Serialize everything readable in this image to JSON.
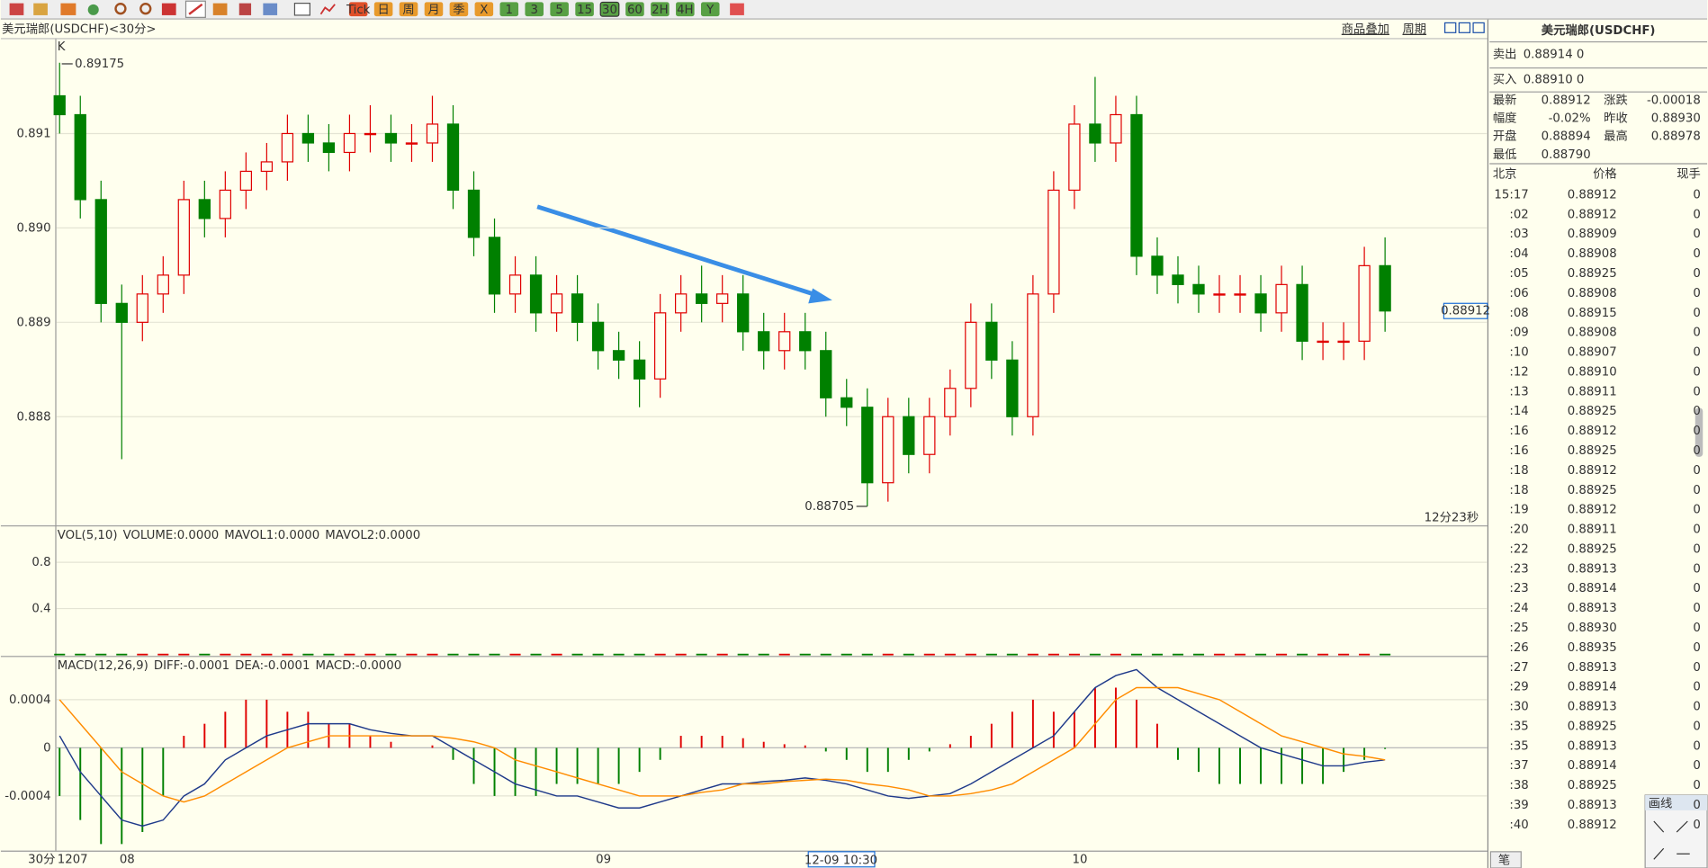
{
  "toolbar": [
    "Tick",
    "日",
    "周",
    "月",
    "季",
    "X",
    "1",
    "3",
    "5",
    "15",
    "30",
    "60",
    "2H",
    "4H",
    "Y"
  ],
  "header": {
    "symbol": "美元瑞郎(USDCHF)<30分>",
    "overlay": "商品叠加",
    "period": "周期"
  },
  "chart_data": [
    {
      "type": "candlestick",
      "label": "K",
      "cursor_label": "12-09 10:30",
      "period": "30分",
      "countdown": "12分23秒",
      "categories": [
        "1207",
        null,
        null,
        "08",
        null,
        null,
        null,
        null,
        null,
        null,
        null,
        null,
        null,
        null,
        null,
        null,
        null,
        null,
        null,
        null,
        null,
        null,
        null,
        null,
        null,
        null,
        "09",
        null,
        null,
        null,
        null,
        null,
        null,
        null,
        null,
        null,
        null,
        null,
        null,
        null,
        null,
        null,
        null,
        null,
        null,
        null,
        null,
        null,
        null,
        "10",
        null,
        null,
        null,
        null,
        null,
        null,
        null,
        null,
        null,
        null,
        null,
        null,
        null,
        null,
        null
      ],
      "open": [
        0.8914,
        0.8912,
        0.8903,
        0.8892,
        0.889,
        0.8893,
        0.8895,
        0.8903,
        0.8901,
        0.8904,
        0.8906,
        0.8907,
        0.891,
        0.8909,
        0.8908,
        0.891,
        0.891,
        0.8909,
        0.8909,
        0.8911,
        0.8904,
        0.8899,
        0.8893,
        0.8895,
        0.8891,
        0.8893,
        0.889,
        0.8887,
        0.8886,
        0.8884,
        0.8891,
        0.8893,
        0.8892,
        0.8893,
        0.8889,
        0.8887,
        0.8889,
        0.8887,
        0.8882,
        0.8881,
        0.8873,
        0.888,
        0.8876,
        0.888,
        0.8883,
        0.889,
        0.8886,
        0.888,
        0.8893,
        0.8904,
        0.8911,
        0.8909,
        0.8912,
        0.8897,
        0.8895,
        0.8894,
        0.8893,
        0.8893,
        0.8893,
        0.8891,
        0.8894,
        0.8888,
        0.8888,
        0.8888,
        0.8896
      ],
      "high": [
        0.89175,
        0.8914,
        0.8905,
        0.8894,
        0.8895,
        0.8897,
        0.8905,
        0.8905,
        0.8906,
        0.8908,
        0.8909,
        0.8912,
        0.8912,
        0.8911,
        0.8912,
        0.8913,
        0.8912,
        0.8911,
        0.8914,
        0.8913,
        0.8906,
        0.8901,
        0.8897,
        0.8897,
        0.8895,
        0.8895,
        0.8892,
        0.8889,
        0.8888,
        0.8893,
        0.8895,
        0.8896,
        0.8895,
        0.8895,
        0.8891,
        0.8891,
        0.8891,
        0.8889,
        0.8884,
        0.8883,
        0.8882,
        0.8882,
        0.8882,
        0.8885,
        0.8892,
        0.8892,
        0.8888,
        0.8895,
        0.8906,
        0.8913,
        0.8916,
        0.8914,
        0.8914,
        0.8899,
        0.8897,
        0.8896,
        0.8895,
        0.8895,
        0.8895,
        0.8896,
        0.8896,
        0.889,
        0.889,
        0.8898,
        0.8899
      ],
      "low": [
        0.891,
        0.8901,
        0.889,
        0.88755,
        0.8888,
        0.8891,
        0.8893,
        0.8899,
        0.8899,
        0.8902,
        0.8904,
        0.8905,
        0.8907,
        0.8906,
        0.8906,
        0.8908,
        0.8907,
        0.8907,
        0.8907,
        0.8902,
        0.8897,
        0.8891,
        0.8891,
        0.8889,
        0.8889,
        0.8888,
        0.8885,
        0.8884,
        0.8881,
        0.8882,
        0.8889,
        0.889,
        0.889,
        0.8887,
        0.8885,
        0.8885,
        0.8885,
        0.888,
        0.8879,
        0.88705,
        0.8871,
        0.8874,
        0.8874,
        0.8878,
        0.8881,
        0.8884,
        0.8878,
        0.8878,
        0.8891,
        0.8902,
        0.8907,
        0.8907,
        0.8895,
        0.8893,
        0.8892,
        0.8891,
        0.8891,
        0.8891,
        0.8889,
        0.8889,
        0.8886,
        0.8886,
        0.8886,
        0.8886,
        0.8889
      ],
      "close": [
        0.8912,
        0.8903,
        0.8892,
        0.889,
        0.8893,
        0.8895,
        0.8903,
        0.8901,
        0.8904,
        0.8906,
        0.8907,
        0.891,
        0.8909,
        0.8908,
        0.891,
        0.891,
        0.8909,
        0.8909,
        0.8911,
        0.8904,
        0.8899,
        0.8893,
        0.8895,
        0.8891,
        0.8893,
        0.889,
        0.8887,
        0.8886,
        0.8884,
        0.8891,
        0.8893,
        0.8892,
        0.8893,
        0.8889,
        0.8887,
        0.8889,
        0.8887,
        0.8882,
        0.8881,
        0.8873,
        0.888,
        0.8876,
        0.888,
        0.8883,
        0.889,
        0.8886,
        0.888,
        0.8893,
        0.8904,
        0.8911,
        0.8909,
        0.8912,
        0.8897,
        0.8895,
        0.8894,
        0.8893,
        0.8893,
        0.8893,
        0.8891,
        0.8894,
        0.8888,
        0.8888,
        0.8888,
        0.8896,
        0.88912
      ],
      "up_color": "#e00000",
      "down_color": "#008000",
      "ylim": [
        0.88686,
        0.892
      ],
      "yticks": [
        0.888,
        0.889,
        {
          "value": 0.89,
          "label": "0.890"
        },
        0.891
      ],
      "grid": true
    },
    {
      "type": "volume",
      "title": "VOL(5,10)",
      "legend": [
        {
          "text": "VOLUME:0.0000",
          "color": "#555555"
        },
        {
          "text": "MAVOL1:0.0000",
          "color": "#000080"
        },
        {
          "text": "MAVOL2:0.0000",
          "color": "#ff8000"
        }
      ],
      "values": [
        0,
        0,
        0,
        0,
        0,
        0,
        0,
        0,
        0,
        0,
        0,
        0,
        0,
        0,
        0,
        0,
        0,
        0,
        0,
        0,
        0,
        0,
        0,
        0,
        0,
        0,
        0,
        0,
        0,
        0,
        0,
        0,
        0,
        0,
        0,
        0,
        0,
        0,
        0,
        0,
        0,
        0,
        0,
        0,
        0,
        0,
        0,
        0,
        0,
        0,
        0,
        0,
        0,
        0,
        0,
        0,
        0,
        0,
        0,
        0,
        0,
        0,
        0,
        0,
        0
      ],
      "ylim": [
        0,
        1.11
      ],
      "yticks": [
        0.4,
        0.8
      ],
      "grid": true
    },
    {
      "type": "macd",
      "title": "MACD(12,26,9)",
      "series": [
        {
          "name": "DIFF:-0.0001",
          "color": "#1f3a8a",
          "values": [
            0.0001,
            -0.0002,
            -0.0004,
            -0.0006,
            -0.00065,
            -0.0006,
            -0.0004,
            -0.0003,
            -0.0001,
            0,
            0.0001,
            0.00015,
            0.0002,
            0.0002,
            0.0002,
            0.00015,
            0.00012,
            0.0001,
            0.0001,
            0,
            -0.0001,
            -0.0002,
            -0.0003,
            -0.00035,
            -0.0004,
            -0.0004,
            -0.00045,
            -0.0005,
            -0.0005,
            -0.00045,
            -0.0004,
            -0.00035,
            -0.0003,
            -0.0003,
            -0.00028,
            -0.00027,
            -0.00025,
            -0.00027,
            -0.0003,
            -0.00035,
            -0.0004,
            -0.00042,
            -0.0004,
            -0.00038,
            -0.0003,
            -0.0002,
            -0.0001,
            0,
            0.0001,
            0.0003,
            0.0005,
            0.0006,
            0.00065,
            0.0005,
            0.0004,
            0.0003,
            0.0002,
            0.0001,
            0,
            -5e-05,
            -0.0001,
            -0.00015,
            -0.00015,
            -0.00012,
            -0.0001
          ]
        },
        {
          "name": "DEA:-0.0001",
          "color": "#ff8c00",
          "values": [
            0.0004,
            0.0002,
            0,
            -0.0002,
            -0.0003,
            -0.0004,
            -0.00045,
            -0.0004,
            -0.0003,
            -0.0002,
            -0.0001,
            0,
            5e-05,
            0.0001,
            0.0001,
            0.0001,
            0.0001,
            0.0001,
            0.0001,
            8e-05,
            5e-05,
            0,
            -0.0001,
            -0.00015,
            -0.0002,
            -0.00025,
            -0.0003,
            -0.00035,
            -0.0004,
            -0.0004,
            -0.0004,
            -0.00037,
            -0.00035,
            -0.0003,
            -0.0003,
            -0.00028,
            -0.00027,
            -0.00026,
            -0.00027,
            -0.0003,
            -0.00032,
            -0.00035,
            -0.0004,
            -0.0004,
            -0.00038,
            -0.00035,
            -0.0003,
            -0.0002,
            -0.0001,
            0,
            0.0002,
            0.0004,
            0.0005,
            0.0005,
            0.0005,
            0.00045,
            0.0004,
            0.0003,
            0.0002,
            0.0001,
            5e-05,
            0,
            -5e-05,
            -7e-05,
            -0.0001
          ]
        }
      ],
      "histogram": {
        "name": "MACD:-0.0000",
        "up_color": "#e00000",
        "down_color": "#008000",
        "values": [
          -0.0004,
          -0.0006,
          -0.0008,
          -0.0008,
          -0.0007,
          -0.0004,
          0.0001,
          0.0002,
          0.0003,
          0.0004,
          0.0004,
          0.0003,
          0.0003,
          0.0002,
          0.0002,
          0.0001,
          5e-05,
          0,
          2e-05,
          -0.0001,
          -0.0003,
          -0.0004,
          -0.0004,
          -0.0004,
          -0.0003,
          -0.0003,
          -0.0003,
          -0.0003,
          -0.0002,
          -0.0001,
          0.0001,
          0.0001,
          0.0001,
          8e-05,
          5e-05,
          3e-05,
          2e-05,
          -3e-05,
          -0.0001,
          -0.0002,
          -0.0002,
          -0.0001,
          -3e-05,
          3e-05,
          0.0001,
          0.0002,
          0.0003,
          0.0004,
          0.0003,
          0.0003,
          0.0005,
          0.0005,
          0.0004,
          0.0002,
          -0.0001,
          -0.0002,
          -0.0003,
          -0.0003,
          -0.0003,
          -0.0003,
          -0.0003,
          -0.0003,
          -0.0002,
          -0.0001,
          -1e-05
        ]
      },
      "ylim": [
        -0.000845,
        0.000755
      ],
      "yticks": [
        0.0004,
        0,
        -0.0004
      ],
      "grid": true
    }
  ],
  "quote": {
    "title": "美元瑞郎(USDCHF)",
    "sell_label": "卖出",
    "sell": "0.88914 0",
    "buy_label": "买入",
    "buy": "0.88910 0",
    "stats": [
      [
        "最新",
        "0.88912",
        "涨跌",
        "-0.00018"
      ],
      [
        "幅度",
        "-0.02%",
        "昨收",
        "0.88930"
      ],
      [
        "开盘",
        "0.88894",
        "最高",
        "0.88978"
      ],
      [
        "最低",
        "0.88790"
      ]
    ],
    "ticks_header": [
      "北京",
      "价格",
      "现手"
    ],
    "ticks": [
      [
        "15:17",
        "0.88912",
        "0"
      ],
      [
        ":02",
        "0.88912",
        "0"
      ],
      [
        ":03",
        "0.88909",
        "0"
      ],
      [
        ":04",
        "0.88908",
        "0"
      ],
      [
        ":05",
        "0.88925",
        "0"
      ],
      [
        ":06",
        "0.88908",
        "0"
      ],
      [
        ":08",
        "0.88915",
        "0"
      ],
      [
        ":09",
        "0.88908",
        "0"
      ],
      [
        ":10",
        "0.88907",
        "0"
      ],
      [
        ":12",
        "0.88910",
        "0"
      ],
      [
        ":13",
        "0.88911",
        "0"
      ],
      [
        ":14",
        "0.88925",
        "0"
      ],
      [
        ":16",
        "0.88912",
        "0"
      ],
      [
        ":16",
        "0.88925",
        "0"
      ],
      [
        ":18",
        "0.88912",
        "0"
      ],
      [
        ":18",
        "0.88925",
        "0"
      ],
      [
        ":19",
        "0.88912",
        "0"
      ],
      [
        ":20",
        "0.88911",
        "0"
      ],
      [
        ":22",
        "0.88925",
        "0"
      ],
      [
        ":23",
        "0.88913",
        "0"
      ],
      [
        ":23",
        "0.88914",
        "0"
      ],
      [
        ":24",
        "0.88913",
        "0"
      ],
      [
        ":25",
        "0.88930",
        "0"
      ],
      [
        ":26",
        "0.88935",
        "0"
      ],
      [
        ":27",
        "0.88913",
        "0"
      ],
      [
        ":29",
        "0.88914",
        "0"
      ],
      [
        ":30",
        "0.88913",
        "0"
      ],
      [
        ":35",
        "0.88925",
        "0"
      ],
      [
        ":35",
        "0.88913",
        "0"
      ],
      [
        ":37",
        "0.88914",
        "0"
      ],
      [
        ":38",
        "0.88925",
        "0"
      ],
      [
        ":39",
        "0.88913",
        "0"
      ],
      [
        ":40",
        "0.88912",
        "0"
      ]
    ]
  },
  "tools": {
    "draw_title": "画线",
    "tab": "笔"
  }
}
